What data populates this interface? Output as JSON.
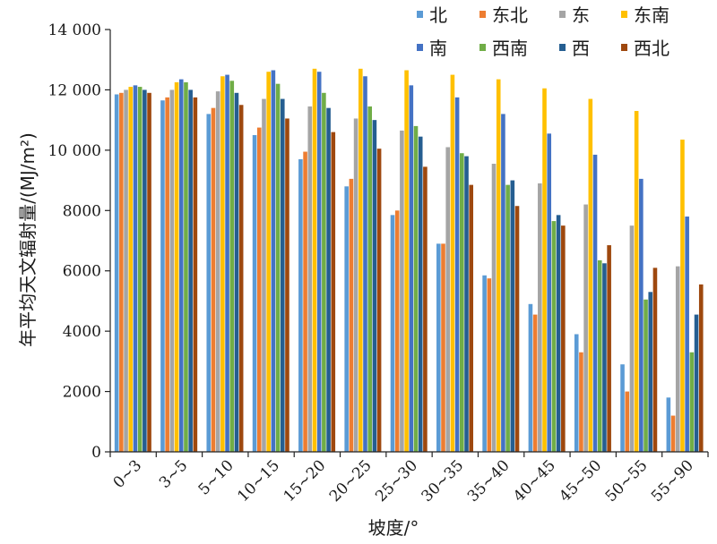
{
  "chart_data": {
    "type": "bar",
    "xlabel": "坡度/°",
    "ylabel": "年平均天文辐射量/(MJ/m²)",
    "ylim": [
      0,
      14000
    ],
    "yticks": [
      0,
      2000,
      4000,
      6000,
      8000,
      10000,
      12000,
      14000
    ],
    "ytick_labels": [
      "0",
      "2000",
      "4000",
      "6000",
      "8000",
      "10 000",
      "12 000",
      "14 000"
    ],
    "grid": false,
    "legend_position": "top-right",
    "categories": [
      "0~3",
      "3~5",
      "5~10",
      "10~15",
      "15~20",
      "20~25",
      "25~30",
      "30~35",
      "35~40",
      "40~45",
      "45~50",
      "50~55",
      "55~90"
    ],
    "series": [
      {
        "name": "北",
        "color": "#5B9BD5",
        "values": [
          11850,
          11650,
          11200,
          10500,
          9700,
          8800,
          7850,
          6900,
          5850,
          4900,
          3900,
          2900,
          1800
        ]
      },
      {
        "name": "东北",
        "color": "#ED7D31",
        "values": [
          11900,
          11750,
          11400,
          10750,
          9950,
          9050,
          8000,
          6900,
          5750,
          4550,
          3300,
          2000,
          1200
        ]
      },
      {
        "name": "东",
        "color": "#A5A5A5",
        "values": [
          12000,
          12000,
          11950,
          11700,
          11450,
          11050,
          10650,
          10100,
          9550,
          8900,
          8200,
          7500,
          6150
        ]
      },
      {
        "name": "东南",
        "color": "#FFC000",
        "values": [
          12100,
          12250,
          12450,
          12600,
          12700,
          12700,
          12650,
          12500,
          12350,
          12050,
          11700,
          11300,
          10350
        ]
      },
      {
        "name": "南",
        "color": "#4472C4",
        "values": [
          12150,
          12350,
          12500,
          12650,
          12600,
          12450,
          12150,
          11750,
          11200,
          10550,
          9850,
          9050,
          7800
        ]
      },
      {
        "name": "西南",
        "color": "#70AD47",
        "values": [
          12100,
          12250,
          12300,
          12200,
          11900,
          11450,
          10800,
          9900,
          8850,
          7650,
          6350,
          5050,
          3300
        ]
      },
      {
        "name": "西",
        "color": "#255E91",
        "values": [
          12000,
          12000,
          11900,
          11700,
          11400,
          11000,
          10450,
          9800,
          9000,
          7850,
          6250,
          5300,
          4550
        ]
      },
      {
        "name": "西北",
        "color": "#9E480E",
        "values": [
          11900,
          11750,
          11500,
          11050,
          10600,
          10050,
          9450,
          8850,
          8150,
          7500,
          6850,
          6100,
          5550
        ]
      }
    ]
  }
}
